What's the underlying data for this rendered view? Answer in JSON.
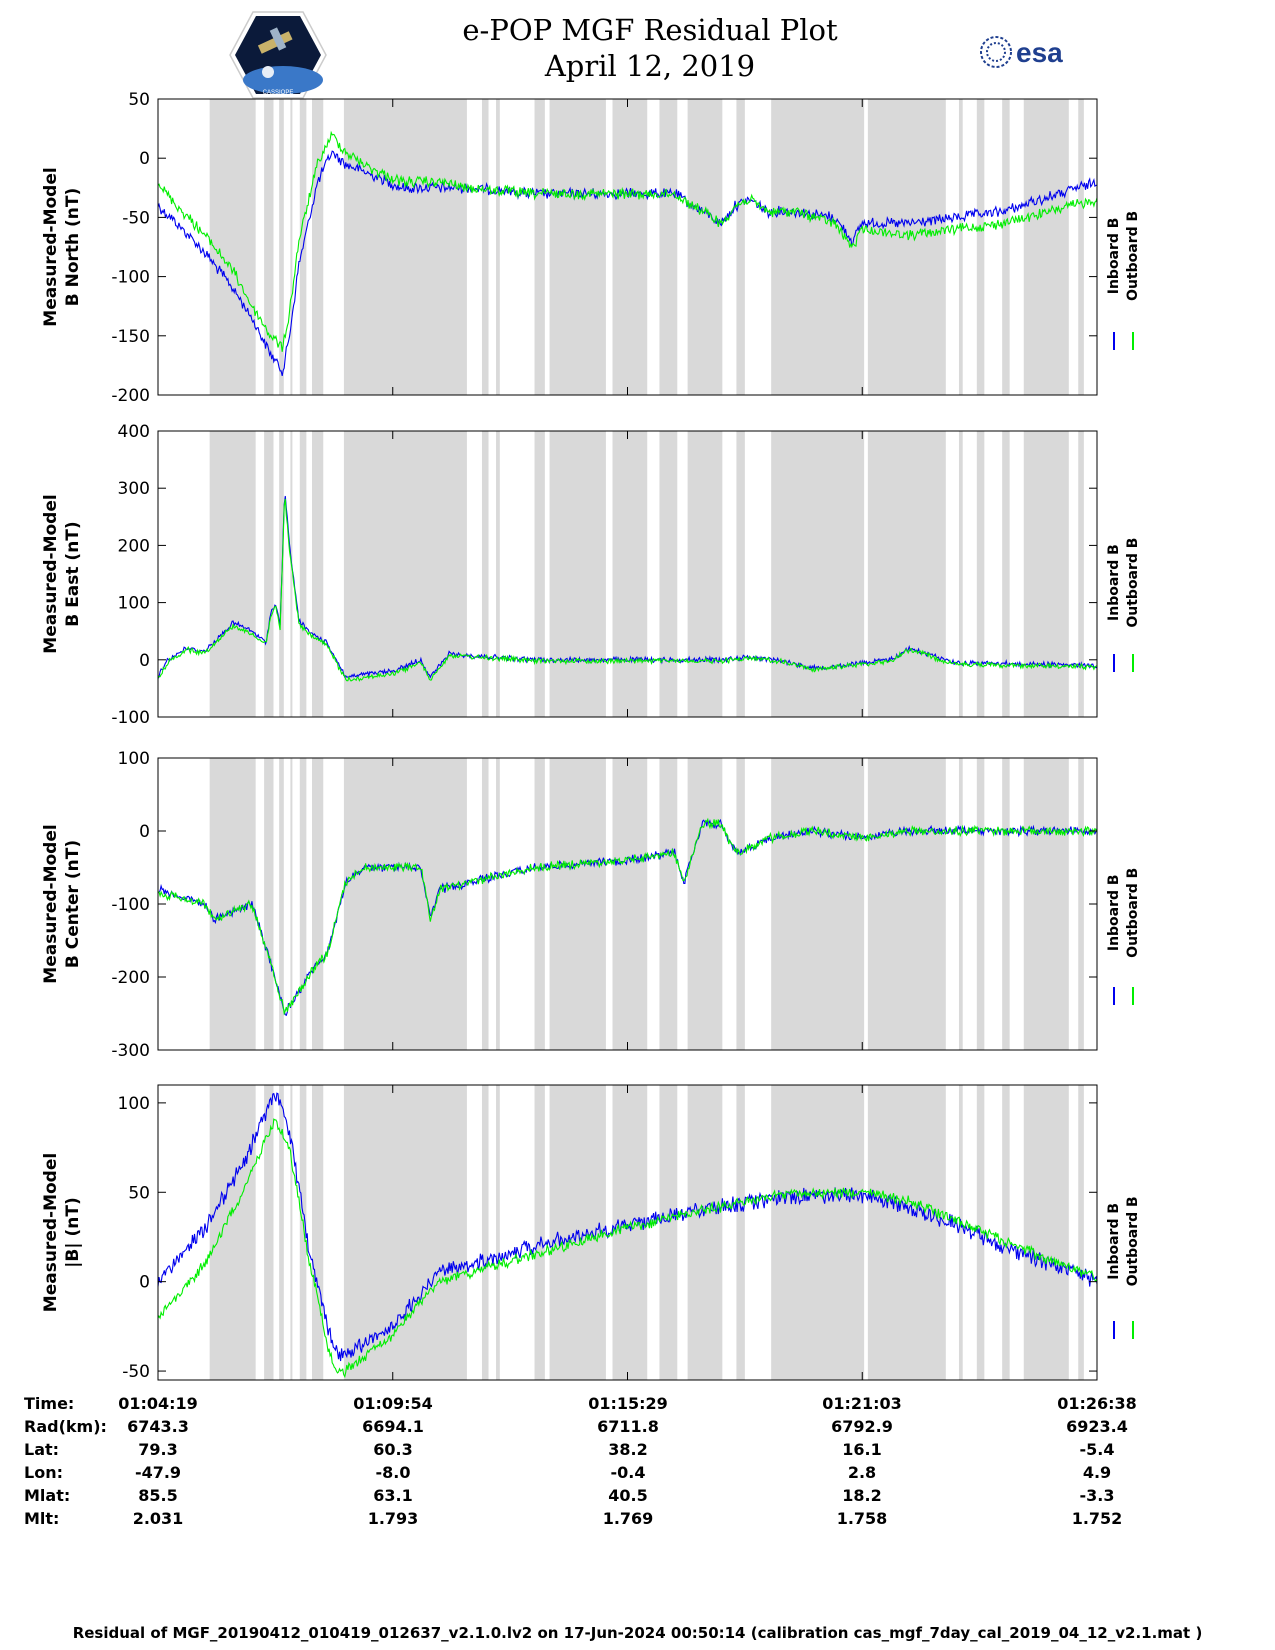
{
  "header": {
    "title": "e-POP MGF Residual Plot",
    "date": "April 12, 2019",
    "logo_left": "CASSIOPE",
    "logo_right": "esa"
  },
  "colors": {
    "inboard": "#0000ee",
    "outboard": "#00ee00",
    "gap": "#d9d9d9"
  },
  "legend": {
    "inboard": "Inboard B",
    "outboard": "Outboard B"
  },
  "data_gaps": [
    [
      0.055,
      0.104
    ],
    [
      0.113,
      0.123
    ],
    [
      0.129,
      0.134
    ],
    [
      0.141,
      0.141
    ],
    [
      0.151,
      0.158
    ],
    [
      0.164,
      0.176
    ],
    [
      0.198,
      0.329
    ],
    [
      0.345,
      0.352
    ],
    [
      0.36,
      0.364
    ],
    [
      0.401,
      0.412
    ],
    [
      0.417,
      0.477
    ],
    [
      0.484,
      0.521
    ],
    [
      0.534,
      0.553
    ],
    [
      0.564,
      0.601
    ],
    [
      0.616,
      0.625
    ],
    [
      0.653,
      0.752
    ],
    [
      0.756,
      0.839
    ],
    [
      0.853,
      0.857
    ],
    [
      0.872,
      0.88
    ],
    [
      0.899,
      0.907
    ],
    [
      0.922,
      0.97
    ],
    [
      0.98,
      0.986
    ]
  ],
  "chart_data": [
    {
      "type": "line",
      "ylabel": [
        "Measured-Model",
        "B North (nT)"
      ],
      "ylim": [
        -200,
        50
      ],
      "yticks": [
        50,
        0,
        -50,
        -100,
        -150,
        -200
      ],
      "series": [
        {
          "name": "Inboard B",
          "noise": 3,
          "x": [
            0,
            0.02,
            0.05,
            0.08,
            0.1,
            0.12,
            0.133,
            0.14,
            0.15,
            0.17,
            0.185,
            0.2,
            0.23,
            0.26,
            0.3,
            0.33,
            0.4,
            0.5,
            0.55,
            0.58,
            0.6,
            0.615,
            0.63,
            0.65,
            0.68,
            0.72,
            0.74,
            0.75,
            0.8,
            0.9,
            1.0
          ],
          "y": [
            -40,
            -55,
            -80,
            -110,
            -135,
            -165,
            -180,
            -150,
            -90,
            -20,
            5,
            -5,
            -15,
            -25,
            -25,
            -25,
            -30,
            -30,
            -30,
            -45,
            -55,
            -40,
            -35,
            -45,
            -45,
            -50,
            -70,
            -55,
            -55,
            -45,
            -20
          ]
        },
        {
          "name": "Outboard B",
          "noise": 3,
          "x": [
            0,
            0.02,
            0.05,
            0.08,
            0.1,
            0.12,
            0.133,
            0.14,
            0.15,
            0.17,
            0.185,
            0.2,
            0.23,
            0.26,
            0.3,
            0.33,
            0.4,
            0.5,
            0.55,
            0.58,
            0.6,
            0.615,
            0.63,
            0.65,
            0.68,
            0.72,
            0.74,
            0.75,
            0.8,
            0.9,
            1.0
          ],
          "y": [
            -20,
            -40,
            -65,
            -95,
            -125,
            -150,
            -160,
            -130,
            -70,
            -5,
            20,
            5,
            -10,
            -20,
            -20,
            -25,
            -30,
            -30,
            -30,
            -45,
            -55,
            -40,
            -35,
            -45,
            -45,
            -55,
            -75,
            -60,
            -65,
            -55,
            -35
          ]
        }
      ]
    },
    {
      "type": "line",
      "ylabel": [
        "Measured-Model",
        "B East (nT)"
      ],
      "ylim": [
        -100,
        400
      ],
      "yticks": [
        400,
        300,
        200,
        100,
        0,
        -100
      ],
      "series": [
        {
          "name": "Inboard B",
          "noise": 3,
          "x": [
            0,
            0.01,
            0.03,
            0.05,
            0.08,
            0.1,
            0.115,
            0.12,
            0.125,
            0.13,
            0.135,
            0.14,
            0.15,
            0.16,
            0.18,
            0.2,
            0.25,
            0.28,
            0.29,
            0.31,
            0.4,
            0.5,
            0.6,
            0.63,
            0.66,
            0.7,
            0.78,
            0.8,
            0.85,
            1.0
          ],
          "y": [
            -30,
            0,
            20,
            15,
            65,
            50,
            30,
            80,
            100,
            60,
            300,
            200,
            70,
            50,
            30,
            -30,
            -20,
            0,
            -30,
            10,
            0,
            0,
            0,
            5,
            0,
            -15,
            0,
            20,
            -5,
            -10
          ]
        },
        {
          "name": "Outboard B",
          "noise": 3,
          "x": [
            0,
            0.01,
            0.03,
            0.05,
            0.08,
            0.1,
            0.115,
            0.12,
            0.125,
            0.13,
            0.135,
            0.14,
            0.15,
            0.16,
            0.18,
            0.2,
            0.25,
            0.28,
            0.29,
            0.31,
            0.4,
            0.5,
            0.6,
            0.63,
            0.66,
            0.7,
            0.78,
            0.8,
            0.85,
            1.0
          ],
          "y": [
            -35,
            -5,
            18,
            12,
            60,
            45,
            28,
            75,
            95,
            55,
            290,
            190,
            65,
            45,
            25,
            -35,
            -25,
            -5,
            -35,
            8,
            -2,
            -2,
            -2,
            3,
            -2,
            -17,
            -2,
            18,
            -8,
            -12
          ]
        }
      ]
    },
    {
      "type": "line",
      "ylabel": [
        "Measured-Model",
        "B Center (nT)"
      ],
      "ylim": [
        -300,
        100
      ],
      "yticks": [
        100,
        0,
        -100,
        -200,
        -300
      ],
      "series": [
        {
          "name": "Inboard B",
          "noise": 4,
          "x": [
            0,
            0.05,
            0.06,
            0.1,
            0.12,
            0.135,
            0.15,
            0.17,
            0.18,
            0.19,
            0.2,
            0.22,
            0.25,
            0.28,
            0.29,
            0.3,
            0.4,
            0.5,
            0.55,
            0.56,
            0.58,
            0.6,
            0.61,
            0.62,
            0.65,
            0.7,
            0.75,
            0.8,
            1.0
          ],
          "y": [
            -80,
            -100,
            -120,
            -100,
            -180,
            -250,
            -220,
            -180,
            -170,
            -120,
            -70,
            -50,
            -50,
            -50,
            -120,
            -80,
            -50,
            -40,
            -30,
            -70,
            10,
            10,
            -20,
            -30,
            -10,
            0,
            -10,
            0,
            0
          ]
        },
        {
          "name": "Outboard B",
          "noise": 4,
          "x": [
            0,
            0.05,
            0.06,
            0.1,
            0.12,
            0.135,
            0.15,
            0.17,
            0.18,
            0.19,
            0.2,
            0.22,
            0.25,
            0.28,
            0.29,
            0.3,
            0.4,
            0.5,
            0.55,
            0.56,
            0.58,
            0.6,
            0.61,
            0.62,
            0.65,
            0.7,
            0.75,
            0.8,
            1.0
          ],
          "y": [
            -85,
            -100,
            -120,
            -100,
            -180,
            -250,
            -220,
            -180,
            -170,
            -120,
            -70,
            -50,
            -50,
            -50,
            -120,
            -80,
            -50,
            -40,
            -30,
            -70,
            10,
            10,
            -20,
            -30,
            -10,
            0,
            -10,
            0,
            0
          ]
        }
      ]
    },
    {
      "type": "line",
      "ylabel": [
        "Measured-Model",
        "|B| (nT)"
      ],
      "ylim": [
        -55,
        110
      ],
      "yticks": [
        100,
        50,
        0,
        -50
      ],
      "series": [
        {
          "name": "Inboard B",
          "noise": 3,
          "x": [
            0,
            0.05,
            0.09,
            0.115,
            0.125,
            0.14,
            0.16,
            0.18,
            0.19,
            0.2,
            0.25,
            0.3,
            0.4,
            0.5,
            0.6,
            0.68,
            0.75,
            0.8,
            0.85,
            0.9,
            0.95,
            1.0
          ],
          "y": [
            0,
            30,
            65,
            95,
            105,
            85,
            20,
            -25,
            -40,
            -40,
            -25,
            5,
            20,
            32,
            42,
            48,
            48,
            42,
            32,
            20,
            10,
            0
          ]
        },
        {
          "name": "Outboard B",
          "noise": 2,
          "x": [
            0,
            0.05,
            0.09,
            0.115,
            0.125,
            0.14,
            0.16,
            0.18,
            0.19,
            0.2,
            0.25,
            0.3,
            0.4,
            0.5,
            0.6,
            0.68,
            0.75,
            0.8,
            0.85,
            0.9,
            0.95,
            1.0
          ],
          "y": [
            -20,
            10,
            50,
            80,
            90,
            75,
            15,
            -35,
            -50,
            -50,
            -30,
            0,
            15,
            30,
            42,
            50,
            50,
            45,
            35,
            23,
            12,
            2
          ]
        }
      ]
    }
  ],
  "info_table": {
    "labels": [
      "Time:",
      "Rad(km):",
      "Lat:",
      "Lon:",
      "Mlat:",
      "Mlt:"
    ],
    "columns": [
      [
        "01:04:19",
        "6743.3",
        "79.3",
        "-47.9",
        "85.5",
        "2.031"
      ],
      [
        "01:09:54",
        "6694.1",
        "60.3",
        "-8.0",
        "63.1",
        "1.793"
      ],
      [
        "01:15:29",
        "6711.8",
        "38.2",
        "-0.4",
        "40.5",
        "1.769"
      ],
      [
        "01:21:03",
        "6792.9",
        "16.1",
        "2.8",
        "18.2",
        "1.758"
      ],
      [
        "01:26:38",
        "6923.4",
        "-5.4",
        "4.9",
        "-3.3",
        "1.752"
      ]
    ]
  },
  "footer": "Residual of MGF_20190412_010419_012637_v2.1.0.lv2 on 17-Jun-2024 00:50:14 (calibration cas_mgf_7day_cal_2019_04_12_v2.1.mat )"
}
